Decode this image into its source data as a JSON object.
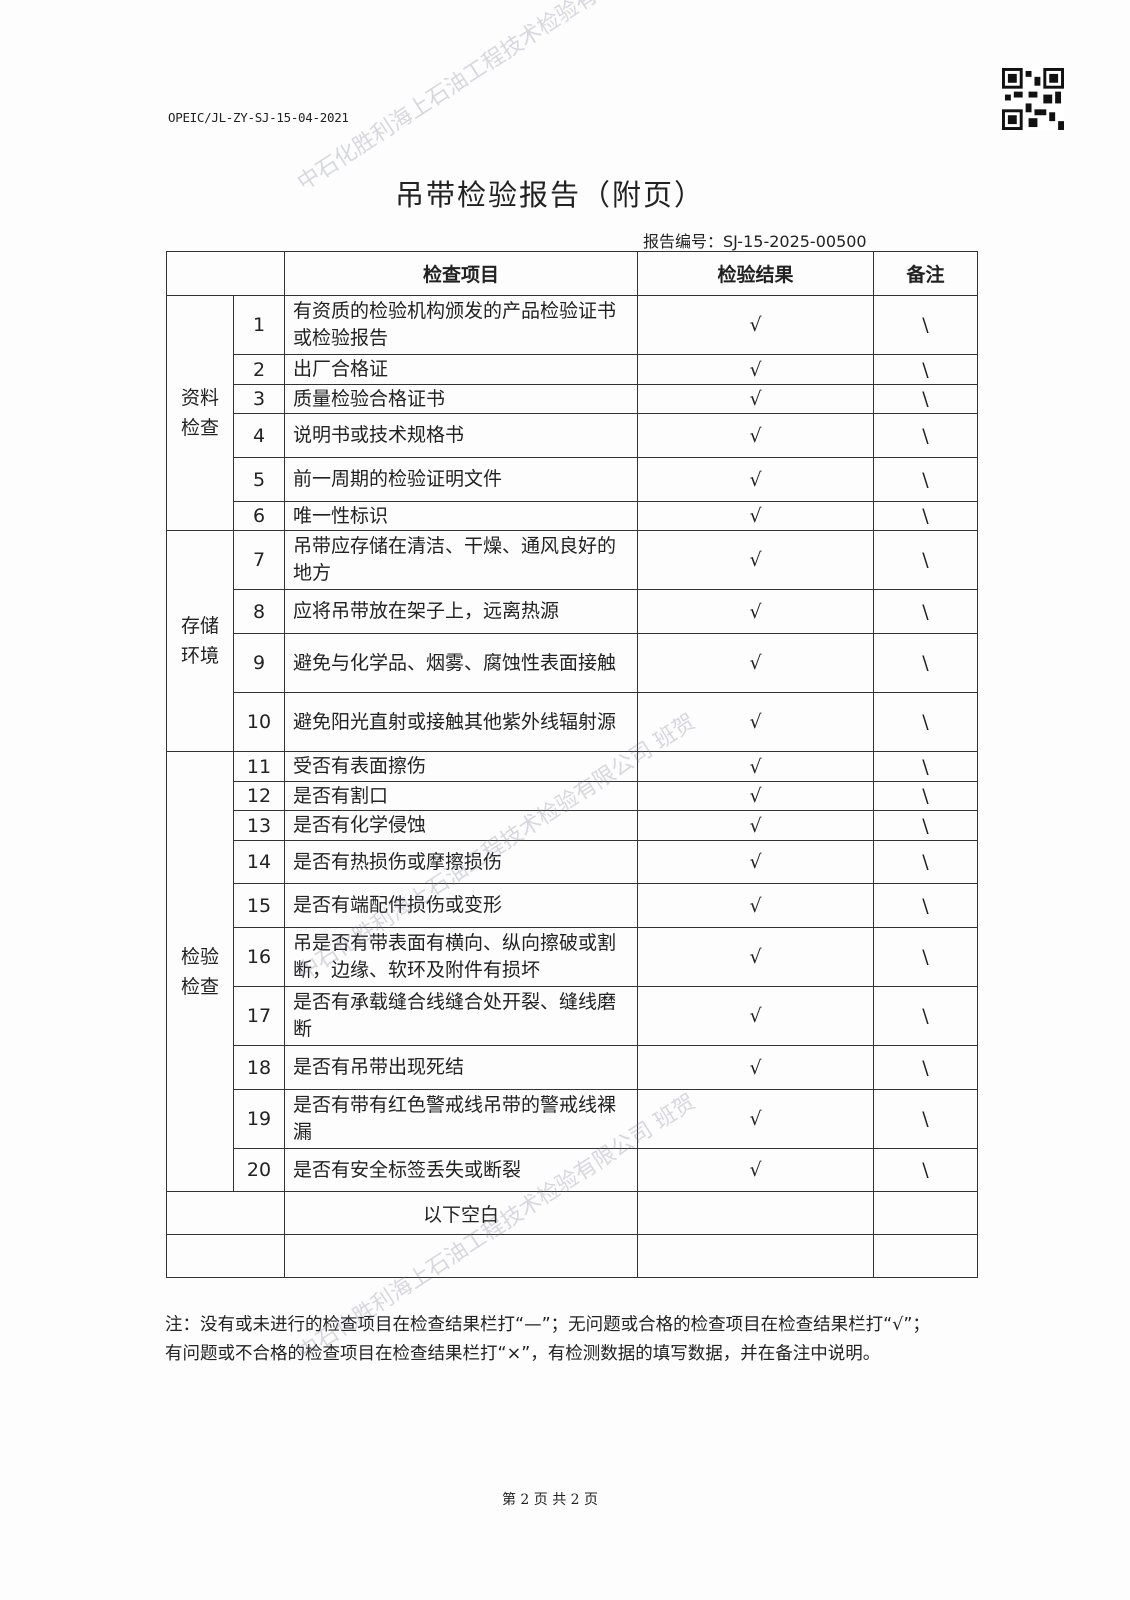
{
  "header": {
    "doc_code": "OPEIC/JL-ZY-SJ-15-04-2021",
    "title": "吊带检验报告（附页）",
    "report_no": "报告编号：SJ-15-2025-00500"
  },
  "table": {
    "headers": [
      "",
      "检查项目",
      "检验结果",
      "备注"
    ],
    "groups": [
      {
        "label": "资料\n检查",
        "rows": 6
      },
      {
        "label": "存储\n环境",
        "rows": 4
      },
      {
        "label": "检验\n检查",
        "rows": 10
      }
    ],
    "rows": [
      {
        "no": "1",
        "item": "有资质的检验机构颁发的产品检验证书或检验报告",
        "result": "√",
        "remark": "\\"
      },
      {
        "no": "2",
        "item": "出厂合格证",
        "result": "√",
        "remark": "\\"
      },
      {
        "no": "3",
        "item": "质量检验合格证书",
        "result": "√",
        "remark": "\\"
      },
      {
        "no": "4",
        "item": "说明书或技术规格书",
        "result": "√",
        "remark": "\\"
      },
      {
        "no": "5",
        "item": "前一周期的检验证明文件",
        "result": "√",
        "remark": "\\"
      },
      {
        "no": "6",
        "item": "唯一性标识",
        "result": "√",
        "remark": "\\"
      },
      {
        "no": "7",
        "item": "吊带应存储在清洁、干燥、通风良好的地方",
        "result": "√",
        "remark": "\\"
      },
      {
        "no": "8",
        "item": "应将吊带放在架子上，远离热源",
        "result": "√",
        "remark": "\\"
      },
      {
        "no": "9",
        "item": "避免与化学品、烟雾、腐蚀性表面接触",
        "result": "√",
        "remark": "\\"
      },
      {
        "no": "10",
        "item": "避免阳光直射或接触其他紫外线辐射源",
        "result": "√",
        "remark": "\\"
      },
      {
        "no": "11",
        "item": "受否有表面擦伤",
        "result": "√",
        "remark": "\\"
      },
      {
        "no": "12",
        "item": "是否有割口",
        "result": "√",
        "remark": "\\"
      },
      {
        "no": "13",
        "item": "是否有化学侵蚀",
        "result": "√",
        "remark": "\\"
      },
      {
        "no": "14",
        "item": "是否有热损伤或摩擦损伤",
        "result": "√",
        "remark": "\\"
      },
      {
        "no": "15",
        "item": "是否有端配件损伤或变形",
        "result": "√",
        "remark": "\\"
      },
      {
        "no": "16",
        "item": "吊是否有带表面有横向、纵向擦破或割断，边缘、软环及附件有损坏",
        "result": "√",
        "remark": "\\"
      },
      {
        "no": "17",
        "item": "是否有承载缝合线缝合处开裂、缝线磨断",
        "result": "√",
        "remark": "\\"
      },
      {
        "no": "18",
        "item": "是否有吊带出现死结",
        "result": "√",
        "remark": "\\"
      },
      {
        "no": "19",
        "item": "是否有带有红色警戒线吊带的警戒线裸漏",
        "result": "√",
        "remark": "\\"
      },
      {
        "no": "20",
        "item": "是否有安全标签丢失或断裂",
        "result": "√",
        "remark": "\\"
      }
    ],
    "blank_rows": [
      {
        "item": "以下空白"
      },
      {
        "item": ""
      }
    ]
  },
  "note": "注：没有或未进行的检查项目在检查结果栏打“—”；无问题或合格的检查项目在检查结果栏打“√”；有问题或不合格的检查项目在检查结果栏打“×”，有检测数据的填写数据，并在备注中说明。",
  "footer": {
    "page": "第 2 页 共 2 页"
  },
  "watermarks": [
    "中石化胜利海上石油工程技术检验有限公司 班贺",
    "中石化胜利海上石油工程技术检验有限公司 班贺",
    "中石化胜利海上石油工程技术检验有限公司 班贺"
  ]
}
